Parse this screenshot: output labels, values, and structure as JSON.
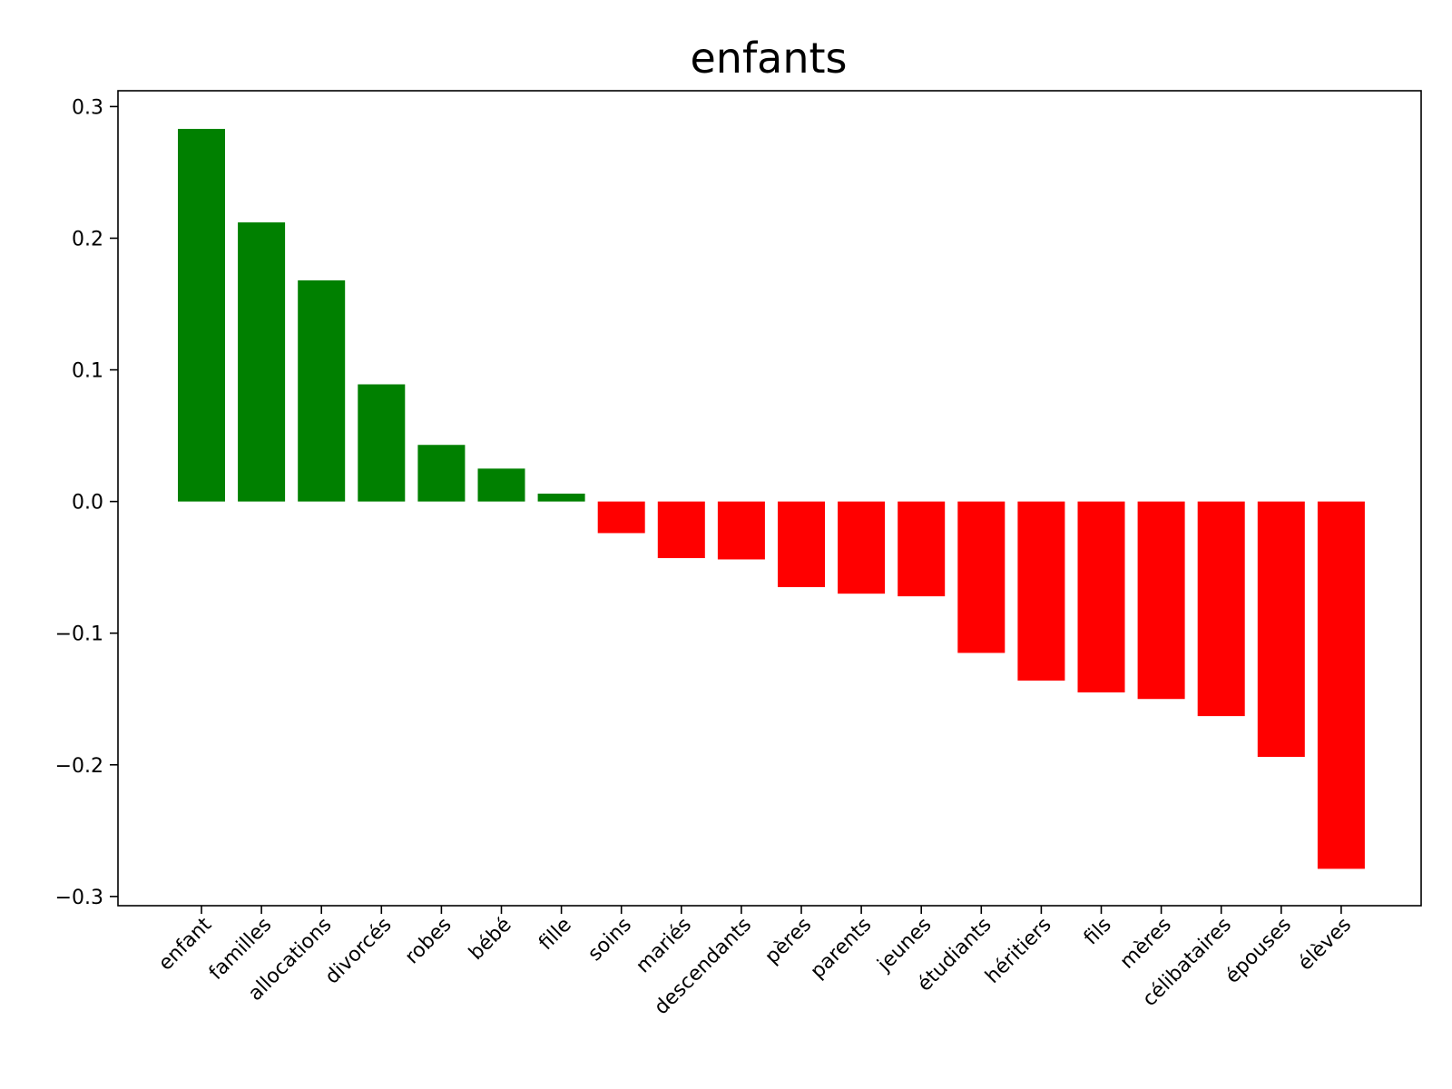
{
  "chart_data": {
    "type": "bar",
    "title": "enfants",
    "xlabel": "",
    "ylabel": "",
    "categories": [
      "enfant",
      "familles",
      "allocations",
      "divorcés",
      "robes",
      "bébé",
      "fille",
      "soins",
      "mariés",
      "descendants",
      "pères",
      "parents",
      "jeunes",
      "étudiants",
      "héritiers",
      "fils",
      "mères",
      "célibataires",
      "épouses",
      "élèves"
    ],
    "values": [
      0.283,
      0.212,
      0.168,
      0.089,
      0.043,
      0.025,
      0.006,
      -0.024,
      -0.043,
      -0.044,
      -0.065,
      -0.07,
      -0.072,
      -0.115,
      -0.136,
      -0.145,
      -0.15,
      -0.163,
      -0.194,
      -0.279
    ],
    "ylim": [
      -0.307,
      0.312
    ],
    "yticks": [
      0.3,
      0.2,
      0.1,
      0.0,
      -0.1,
      -0.2,
      -0.3
    ],
    "ytick_labels": [
      "0.3",
      "0.2",
      "0.1",
      "0.0",
      "−0.1",
      "−0.2",
      "−0.3"
    ],
    "positive_color": "#008000",
    "negative_color": "#ff0000",
    "grid": false,
    "legend": "none"
  }
}
